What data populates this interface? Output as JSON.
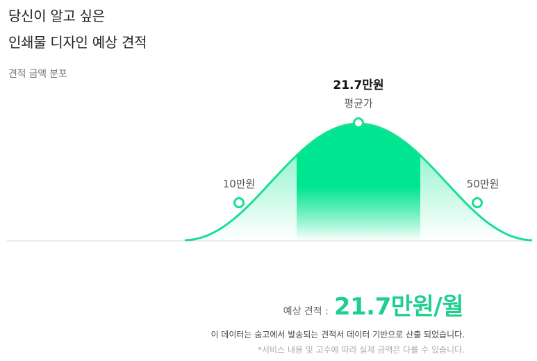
{
  "header": {
    "title_line1": "당신이 알고 싶은",
    "title_line2": "인쇄물 디자인 예상 견적"
  },
  "section_label": "견적 금액 분포",
  "chart_data": {
    "type": "area",
    "title": "",
    "points": [
      {
        "label": "10만원",
        "value": 10
      },
      {
        "label": "21.7만원",
        "value": 21.7,
        "sublabel": "평균가"
      },
      {
        "label": "50만원",
        "value": 50
      }
    ],
    "colors": {
      "stroke": "#18df92",
      "fill": "#00e58f"
    }
  },
  "estimate": {
    "label": "예상 견적 :",
    "value": "21.7만원/월"
  },
  "notes": {
    "line1": "이 데이터는 숨고에서 발송되는 견적서 데이터 기반으로 산출 되었습니다.",
    "line2": "*서비스 내용 및 고수에 따라 실제 금액은 다를 수 있습니다."
  }
}
